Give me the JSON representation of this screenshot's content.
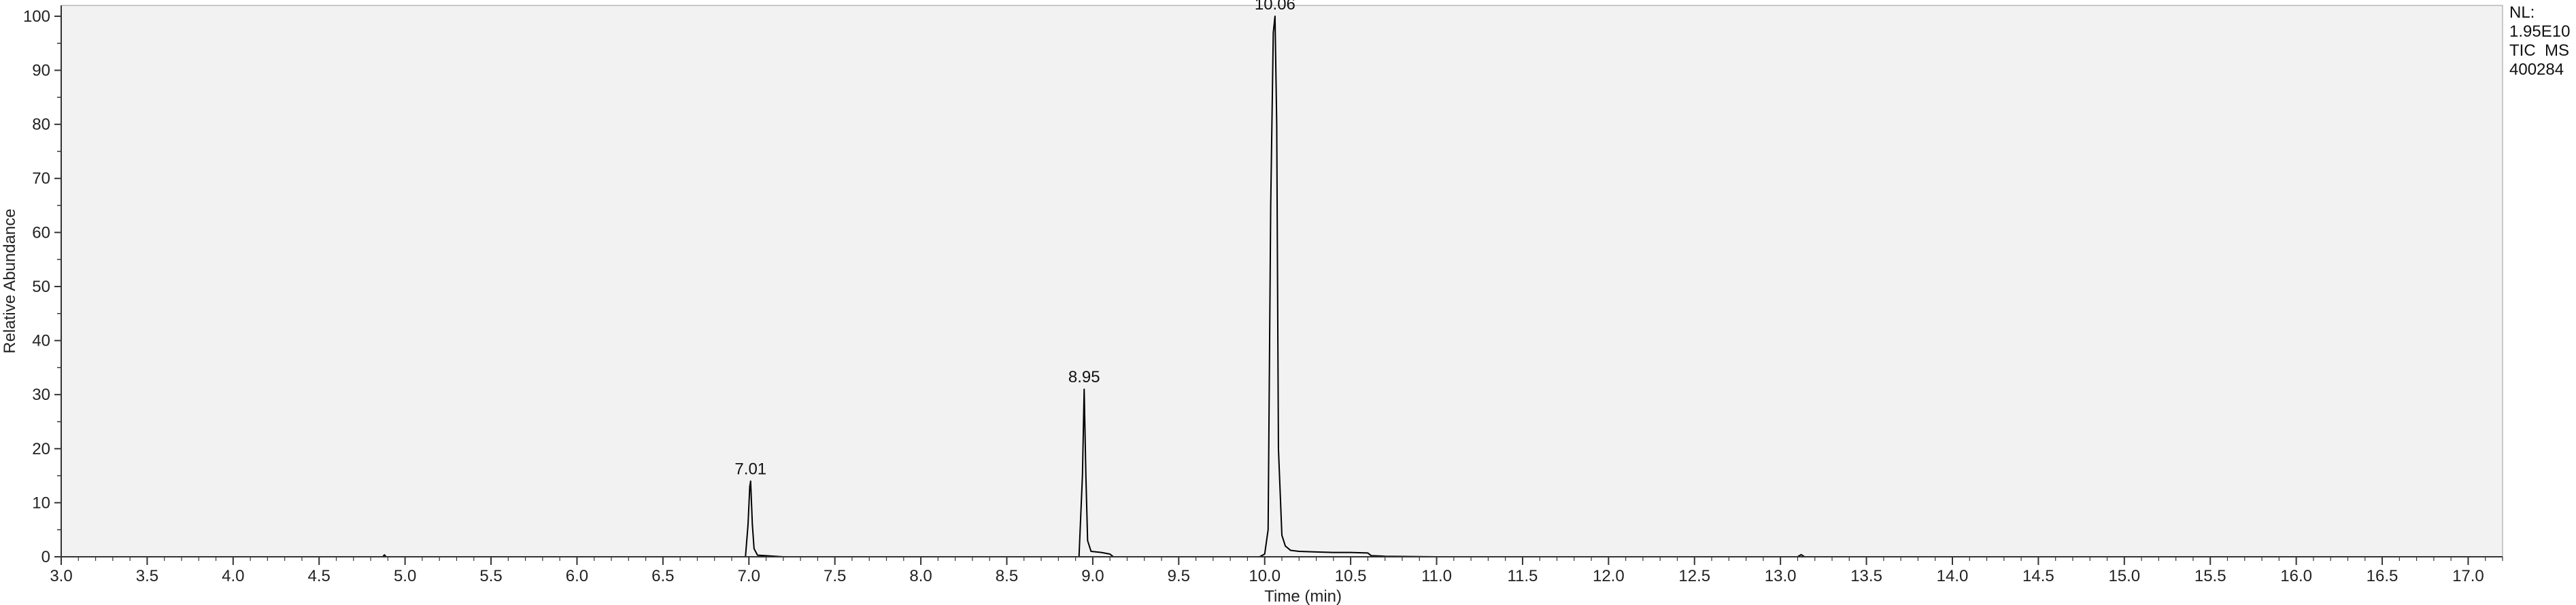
{
  "chart_data": {
    "type": "line",
    "title": "",
    "xlabel": "Time (min)",
    "ylabel": "Relative Abundance",
    "xlim": [
      3.0,
      17.2
    ],
    "ylim": [
      0,
      102
    ],
    "grid": false,
    "x_ticks": [
      "3.0",
      "3.5",
      "4.0",
      "4.5",
      "5.0",
      "5.5",
      "6.0",
      "6.5",
      "7.0",
      "7.5",
      "8.0",
      "8.5",
      "9.0",
      "9.5",
      "10.0",
      "10.5",
      "11.0",
      "11.5",
      "12.0",
      "12.5",
      "13.0",
      "13.5",
      "14.0",
      "14.5",
      "15.0",
      "15.5",
      "16.0",
      "16.5",
      "17.0"
    ],
    "y_ticks": [
      "0",
      "10",
      "20",
      "30",
      "40",
      "50",
      "60",
      "70",
      "80",
      "90",
      "100"
    ],
    "info_lines": [
      "NL:",
      "1.95E10",
      "TIC  MS",
      "400284"
    ],
    "peaks": [
      {
        "label": "7.01",
        "x": 7.01,
        "y": 14
      },
      {
        "label": "8.95",
        "x": 8.95,
        "y": 31
      },
      {
        "label": "10.06",
        "x": 10.06,
        "y": 100
      }
    ],
    "series": [
      {
        "x": [
          3.0,
          4.87,
          4.88,
          4.89,
          6.9,
          6.98,
          6.995,
          7.005,
          7.01,
          7.02,
          7.03,
          7.05,
          7.2,
          8.85,
          8.92,
          8.94,
          8.95,
          8.96,
          8.97,
          8.99,
          9.05,
          9.1,
          9.12,
          9.97,
          10.0,
          10.02,
          10.035,
          10.05,
          10.06,
          10.07,
          10.08,
          10.1,
          10.12,
          10.15,
          10.2,
          10.3,
          10.4,
          10.5,
          10.6,
          10.62,
          10.7,
          11.0,
          13.1,
          13.12,
          13.14,
          17.2
        ],
        "y": [
          0,
          0,
          0.35,
          0,
          0,
          0,
          6,
          13,
          14,
          6,
          1.5,
          0.3,
          0,
          0,
          0,
          15,
          31,
          15,
          3,
          1,
          0.8,
          0.5,
          0,
          0,
          0.5,
          5,
          65,
          97,
          100,
          80,
          20,
          4,
          2,
          1.2,
          1,
          0.9,
          0.8,
          0.8,
          0.7,
          0.2,
          0.1,
          0,
          0,
          0.4,
          0,
          0
        ]
      }
    ]
  },
  "colors": {
    "plot_background": "#f2f2f2",
    "trace": "#000000",
    "axis": "#333333"
  }
}
